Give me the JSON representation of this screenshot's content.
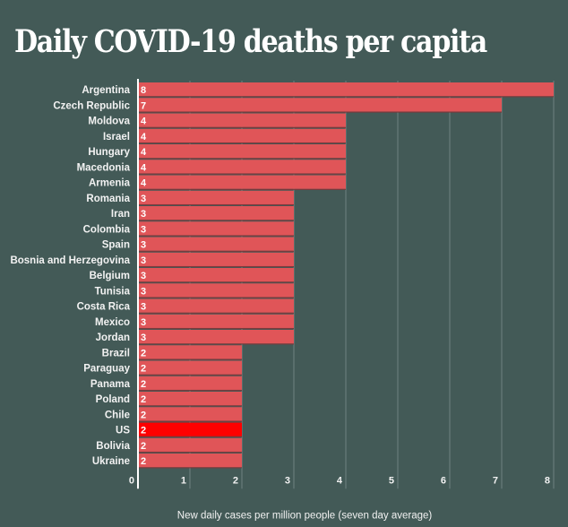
{
  "chart_data": {
    "type": "bar",
    "orientation": "horizontal",
    "title": "Daily COVID-19 deaths per capita",
    "xlabel": "New daily cases per million people (seven day average)",
    "ylabel": "",
    "xlim": [
      0,
      8
    ],
    "xticks": [
      0,
      1,
      2,
      3,
      4,
      5,
      6,
      7,
      8
    ],
    "grid": true,
    "categories": [
      "Argentina",
      "Czech Republic",
      "Moldova",
      "Israel",
      "Hungary",
      "Macedonia",
      "Armenia",
      "Romania",
      "Iran",
      "Colombia",
      "Spain",
      "Bosnia and Herzegovina",
      "Belgium",
      "Tunisia",
      "Costa Rica",
      "Mexico",
      "Jordan",
      "Brazil",
      "Paraguay",
      "Panama",
      "Poland",
      "Chile",
      "US",
      "Bolivia",
      "Ukraine"
    ],
    "values": [
      8,
      7,
      4,
      4,
      4,
      4,
      4,
      3,
      3,
      3,
      3,
      3,
      3,
      3,
      3,
      3,
      3,
      2,
      2,
      2,
      2,
      2,
      2,
      2,
      2
    ],
    "highlight": "US",
    "colors": {
      "background": "#435a57",
      "bar": "#e05558",
      "bar_highlight": "#ff0000",
      "bar_separator": "#7a3a3c",
      "grid": "#6f8380",
      "axis": "#ffffff",
      "text": "#f2f2f2"
    }
  }
}
